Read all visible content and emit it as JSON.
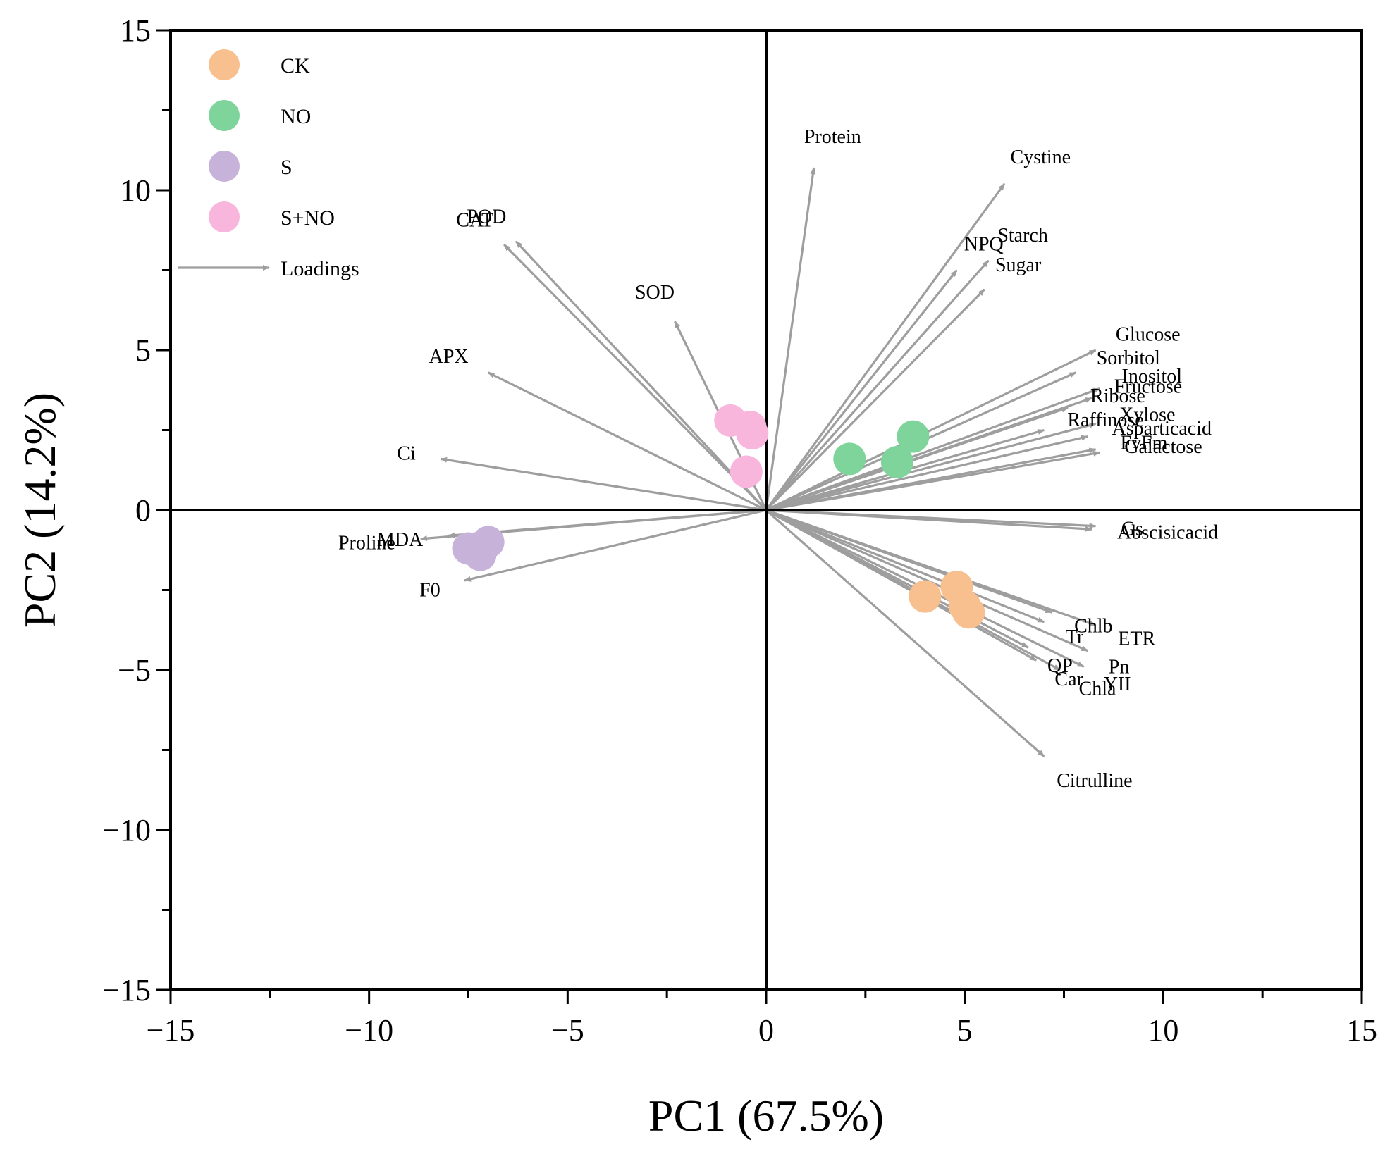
{
  "chart_data": {
    "type": "scatter",
    "title": "",
    "xlabel": "PC1 (67.5%)",
    "ylabel": "PC2 (14.2%)",
    "xlim": [
      -15,
      15
    ],
    "ylim": [
      -15,
      15
    ],
    "x_ticks": [
      -15,
      -10,
      -5,
      0,
      5,
      10,
      15
    ],
    "y_ticks": [
      -15,
      -10,
      -5,
      0,
      5,
      10,
      15
    ],
    "x_tick_labels": [
      "−15",
      "−10",
      "−5",
      "0",
      "5",
      "10",
      "15"
    ],
    "y_tick_labels": [
      "−15",
      "−10",
      "−5",
      "0",
      "5",
      "10",
      "15"
    ],
    "legend_position": "top-left",
    "series": [
      {
        "name": "CK",
        "color": "#f9c08f",
        "points": [
          [
            4.0,
            -2.7
          ],
          [
            4.8,
            -2.4
          ],
          [
            5.0,
            -3.0
          ],
          [
            5.1,
            -3.2
          ]
        ]
      },
      {
        "name": "NO",
        "color": "#7ed49a",
        "points": [
          [
            2.1,
            1.6
          ],
          [
            3.3,
            1.5
          ],
          [
            3.7,
            2.3
          ]
        ]
      },
      {
        "name": "S",
        "color": "#c7b3da",
        "points": [
          [
            -7.5,
            -1.2
          ],
          [
            -7.0,
            -1.0
          ],
          [
            -7.2,
            -1.4
          ]
        ]
      },
      {
        "name": "S+NO",
        "color": "#f8b6dc",
        "points": [
          [
            -0.9,
            2.8
          ],
          [
            -0.4,
            2.6
          ],
          [
            -0.35,
            2.4
          ],
          [
            -0.5,
            1.2
          ]
        ]
      }
    ],
    "loadings_legend": "Loadings",
    "loadings_color": "#9e9e9e",
    "loadings": [
      {
        "name": "Protein",
        "x": 1.2,
        "y": 10.7
      },
      {
        "name": "Cystine",
        "x": 6.0,
        "y": 10.2
      },
      {
        "name": "NPQ",
        "x": 4.8,
        "y": 7.5
      },
      {
        "name": "Starch",
        "x": 5.6,
        "y": 7.8
      },
      {
        "name": "Sugar",
        "x": 5.5,
        "y": 6.9
      },
      {
        "name": "POD",
        "x": -6.3,
        "y": 8.4
      },
      {
        "name": "CAT",
        "x": -6.6,
        "y": 8.3
      },
      {
        "name": "SOD",
        "x": -2.3,
        "y": 5.9
      },
      {
        "name": "APX",
        "x": -7.0,
        "y": 4.3
      },
      {
        "name": "Ci",
        "x": -8.2,
        "y": 1.6
      },
      {
        "name": "MDA",
        "x": -8.0,
        "y": -0.8
      },
      {
        "name": "Proline",
        "x": -8.7,
        "y": -0.9
      },
      {
        "name": "F0",
        "x": -7.6,
        "y": -2.2
      },
      {
        "name": "Glucose",
        "x": 8.3,
        "y": 5.0
      },
      {
        "name": "Sorbitol",
        "x": 7.8,
        "y": 4.3
      },
      {
        "name": "Inositol",
        "x": 8.4,
        "y": 3.8
      },
      {
        "name": "Fructose",
        "x": 8.2,
        "y": 3.5
      },
      {
        "name": "Ribose",
        "x": 7.6,
        "y": 3.2
      },
      {
        "name": "Xylose",
        "x": 8.3,
        "y": 2.7
      },
      {
        "name": "Raffinose",
        "x": 7.0,
        "y": 2.5
      },
      {
        "name": "Asparticacid",
        "x": 8.1,
        "y": 2.3
      },
      {
        "name": "FvFm",
        "x": 8.3,
        "y": 1.9
      },
      {
        "name": "Galactose",
        "x": 8.4,
        "y": 1.8
      },
      {
        "name": "Gs",
        "x": 8.3,
        "y": -0.5
      },
      {
        "name": "Abscisicacid",
        "x": 8.2,
        "y": -0.6
      },
      {
        "name": "Chlb",
        "x": 7.2,
        "y": -3.2
      },
      {
        "name": "Tr",
        "x": 7.0,
        "y": -3.5
      },
      {
        "name": "ETR",
        "x": 8.3,
        "y": -3.6
      },
      {
        "name": "Pn",
        "x": 8.1,
        "y": -4.4
      },
      {
        "name": "YII",
        "x": 8.0,
        "y": -4.9
      },
      {
        "name": "QP",
        "x": 6.6,
        "y": -4.3
      },
      {
        "name": "Car",
        "x": 6.8,
        "y": -4.7
      },
      {
        "name": "Chla",
        "x": 7.4,
        "y": -5.0
      },
      {
        "name": "Citrulline",
        "x": 7.0,
        "y": -7.7
      }
    ]
  }
}
